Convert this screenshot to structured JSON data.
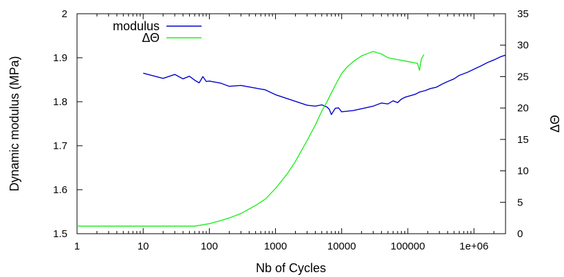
{
  "chart_data": {
    "type": "line",
    "xlabel": "Nb of Cycles",
    "ylabel": "Dynamic modulus (MPa)",
    "y2label": "ΔΘ",
    "xscale": "log",
    "xlim": [
      1,
      3000000
    ],
    "ylim": [
      1.5,
      2.0
    ],
    "y2lim": [
      0,
      35
    ],
    "xticks": [
      {
        "value": 1,
        "label": "1"
      },
      {
        "value": 10,
        "label": "10"
      },
      {
        "value": 100,
        "label": "100"
      },
      {
        "value": 1000,
        "label": "1000"
      },
      {
        "value": 10000,
        "label": "10000"
      },
      {
        "value": 100000,
        "label": "100000"
      },
      {
        "value": 1000000,
        "label": "1e+06"
      }
    ],
    "yticks": [
      {
        "value": 1.5,
        "label": "1.5"
      },
      {
        "value": 1.6,
        "label": "1.6"
      },
      {
        "value": 1.7,
        "label": "1.7"
      },
      {
        "value": 1.8,
        "label": "1.8"
      },
      {
        "value": 1.9,
        "label": "1.9"
      },
      {
        "value": 2.0,
        "label": "2"
      }
    ],
    "y2ticks": [
      {
        "value": 0,
        "label": "0"
      },
      {
        "value": 5,
        "label": "5"
      },
      {
        "value": 10,
        "label": "10"
      },
      {
        "value": 15,
        "label": "15"
      },
      {
        "value": 20,
        "label": "20"
      },
      {
        "value": 25,
        "label": "25"
      },
      {
        "value": 30,
        "label": "30"
      },
      {
        "value": 35,
        "label": "35"
      }
    ],
    "legend_position": "top-left",
    "series": [
      {
        "name": "modulus",
        "axis": "left",
        "color": "#0000cc",
        "points": [
          [
            10,
            1.865
          ],
          [
            20,
            1.853
          ],
          [
            30,
            1.862
          ],
          [
            40,
            1.852
          ],
          [
            50,
            1.858
          ],
          [
            60,
            1.849
          ],
          [
            70,
            1.843
          ],
          [
            80,
            1.857
          ],
          [
            90,
            1.846
          ],
          [
            100,
            1.847
          ],
          [
            150,
            1.842
          ],
          [
            200,
            1.835
          ],
          [
            300,
            1.837
          ],
          [
            500,
            1.831
          ],
          [
            700,
            1.827
          ],
          [
            1000,
            1.816
          ],
          [
            2000,
            1.801
          ],
          [
            3000,
            1.792
          ],
          [
            4000,
            1.79
          ],
          [
            5000,
            1.793
          ],
          [
            6000,
            1.788
          ],
          [
            6500,
            1.783
          ],
          [
            7000,
            1.771
          ],
          [
            8000,
            1.785
          ],
          [
            9000,
            1.786
          ],
          [
            10000,
            1.777
          ],
          [
            15000,
            1.78
          ],
          [
            20000,
            1.784
          ],
          [
            30000,
            1.79
          ],
          [
            40000,
            1.797
          ],
          [
            50000,
            1.795
          ],
          [
            60000,
            1.802
          ],
          [
            70000,
            1.798
          ],
          [
            80000,
            1.806
          ],
          [
            90000,
            1.81
          ],
          [
            100000,
            1.812
          ],
          [
            130000,
            1.817
          ],
          [
            150000,
            1.822
          ],
          [
            180000,
            1.825
          ],
          [
            220000,
            1.83
          ],
          [
            270000,
            1.833
          ],
          [
            330000,
            1.84
          ],
          [
            400000,
            1.846
          ],
          [
            500000,
            1.852
          ],
          [
            600000,
            1.86
          ],
          [
            800000,
            1.867
          ],
          [
            1000000,
            1.874
          ],
          [
            1300000,
            1.882
          ],
          [
            1600000,
            1.889
          ],
          [
            2000000,
            1.895
          ],
          [
            2500000,
            1.902
          ],
          [
            3000000,
            1.906
          ]
        ]
      },
      {
        "name": "ΔΘ",
        "axis": "right",
        "color": "#22ee22",
        "points": [
          [
            1,
            1.2
          ],
          [
            10,
            1.2
          ],
          [
            60,
            1.2
          ],
          [
            100,
            1.6
          ],
          [
            150,
            2.1
          ],
          [
            200,
            2.5
          ],
          [
            300,
            3.2
          ],
          [
            500,
            4.5
          ],
          [
            700,
            5.5
          ],
          [
            1000,
            7.2
          ],
          [
            1500,
            9.5
          ],
          [
            2000,
            11.5
          ],
          [
            3000,
            14.8
          ],
          [
            4000,
            17.3
          ],
          [
            5000,
            19.5
          ],
          [
            6000,
            21.0
          ],
          [
            7000,
            22.4
          ],
          [
            8000,
            23.6
          ],
          [
            10000,
            25.5
          ],
          [
            12000,
            26.5
          ],
          [
            15000,
            27.4
          ],
          [
            20000,
            28.3
          ],
          [
            25000,
            28.7
          ],
          [
            30000,
            29.0
          ],
          [
            40000,
            28.6
          ],
          [
            50000,
            28.0
          ],
          [
            70000,
            27.7
          ],
          [
            100000,
            27.4
          ],
          [
            140000,
            27.1
          ],
          [
            150000,
            26.0
          ],
          [
            160000,
            27.8
          ],
          [
            175000,
            28.5
          ]
        ]
      }
    ]
  }
}
